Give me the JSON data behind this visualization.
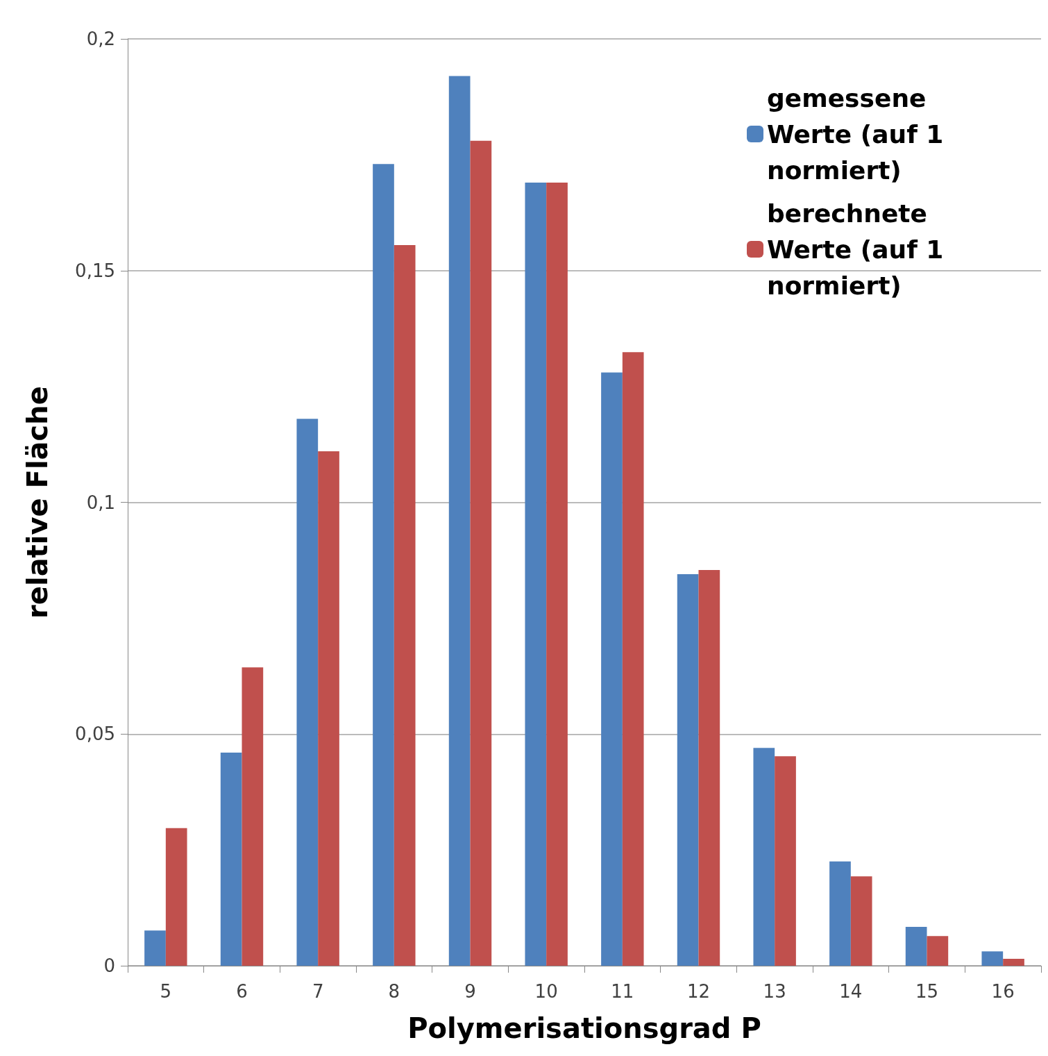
{
  "chart_data": {
    "type": "bar",
    "xlabel": "Polymerisationsgrad P",
    "ylabel": "relative Fläche",
    "categories": [
      "5",
      "6",
      "7",
      "8",
      "9",
      "10",
      "11",
      "12",
      "13",
      "14",
      "15",
      "16"
    ],
    "series": [
      {
        "name": "gemessene Werte (auf 1 normiert)",
        "color": "#4f81bd",
        "values": [
          0.0076,
          0.046,
          0.118,
          0.173,
          0.192,
          0.169,
          0.128,
          0.0845,
          0.047,
          0.0225,
          0.0084,
          0.0031
        ]
      },
      {
        "name": "berechnete Werte (auf 1 normiert)",
        "color": "#c0504d",
        "values": [
          0.0297,
          0.0644,
          0.111,
          0.1555,
          0.178,
          0.169,
          0.1324,
          0.0854,
          0.0452,
          0.0193,
          0.0064,
          0.0015
        ]
      }
    ],
    "ylim": [
      0,
      0.2
    ],
    "yticks": [
      {
        "value": 0,
        "label": "0"
      },
      {
        "value": 0.05,
        "label": "0,05"
      },
      {
        "value": 0.1,
        "label": "0,1"
      },
      {
        "value": 0.15,
        "label": "0,15"
      },
      {
        "value": 0.2,
        "label": "0,2"
      }
    ],
    "grid": "y",
    "legend": "top right"
  }
}
